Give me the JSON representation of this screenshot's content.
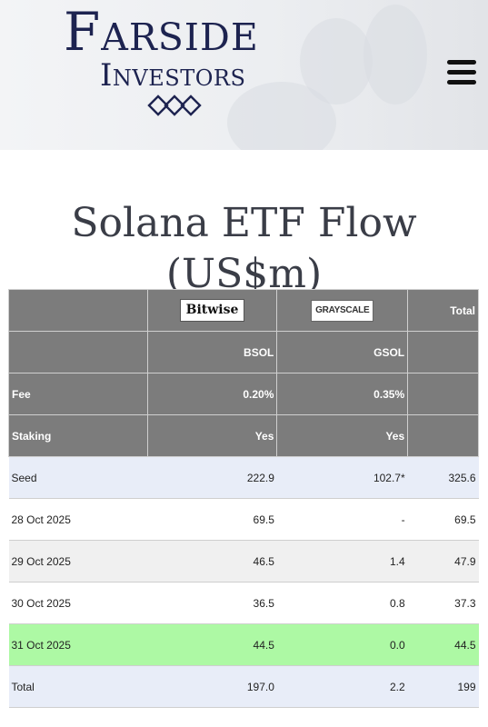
{
  "header": {
    "brand_line1": "Farside",
    "brand_line2": "Investors",
    "menu_icon": "hamburger-menu-icon"
  },
  "page_title": "Solana ETF Flow (US$m)",
  "table": {
    "providers": [
      "Bitwise",
      "GRAYSCALE"
    ],
    "total_header": "Total",
    "tickers": [
      "BSOL",
      "GSOL"
    ],
    "fee_label": "Fee",
    "fees": [
      "0.20%",
      "0.35%"
    ],
    "staking_label": "Staking",
    "staking": [
      "Yes",
      "Yes"
    ],
    "rows": [
      {
        "label": "Seed",
        "bsol": "222.9",
        "gsol": "102.7*",
        "total": "325.6"
      },
      {
        "label": "28 Oct 2025",
        "bsol": "69.5",
        "gsol": "-",
        "total": "69.5"
      },
      {
        "label": "29 Oct 2025",
        "bsol": "46.5",
        "gsol": "1.4",
        "total": "47.9"
      },
      {
        "label": "30 Oct 2025",
        "bsol": "36.5",
        "gsol": "0.8",
        "total": "37.3"
      },
      {
        "label": "31 Oct 2025",
        "bsol": "44.5",
        "gsol": "0.0",
        "total": "44.5"
      },
      {
        "label": "Total",
        "bsol": "197.0",
        "gsol": "2.2",
        "total": "199"
      }
    ]
  }
}
